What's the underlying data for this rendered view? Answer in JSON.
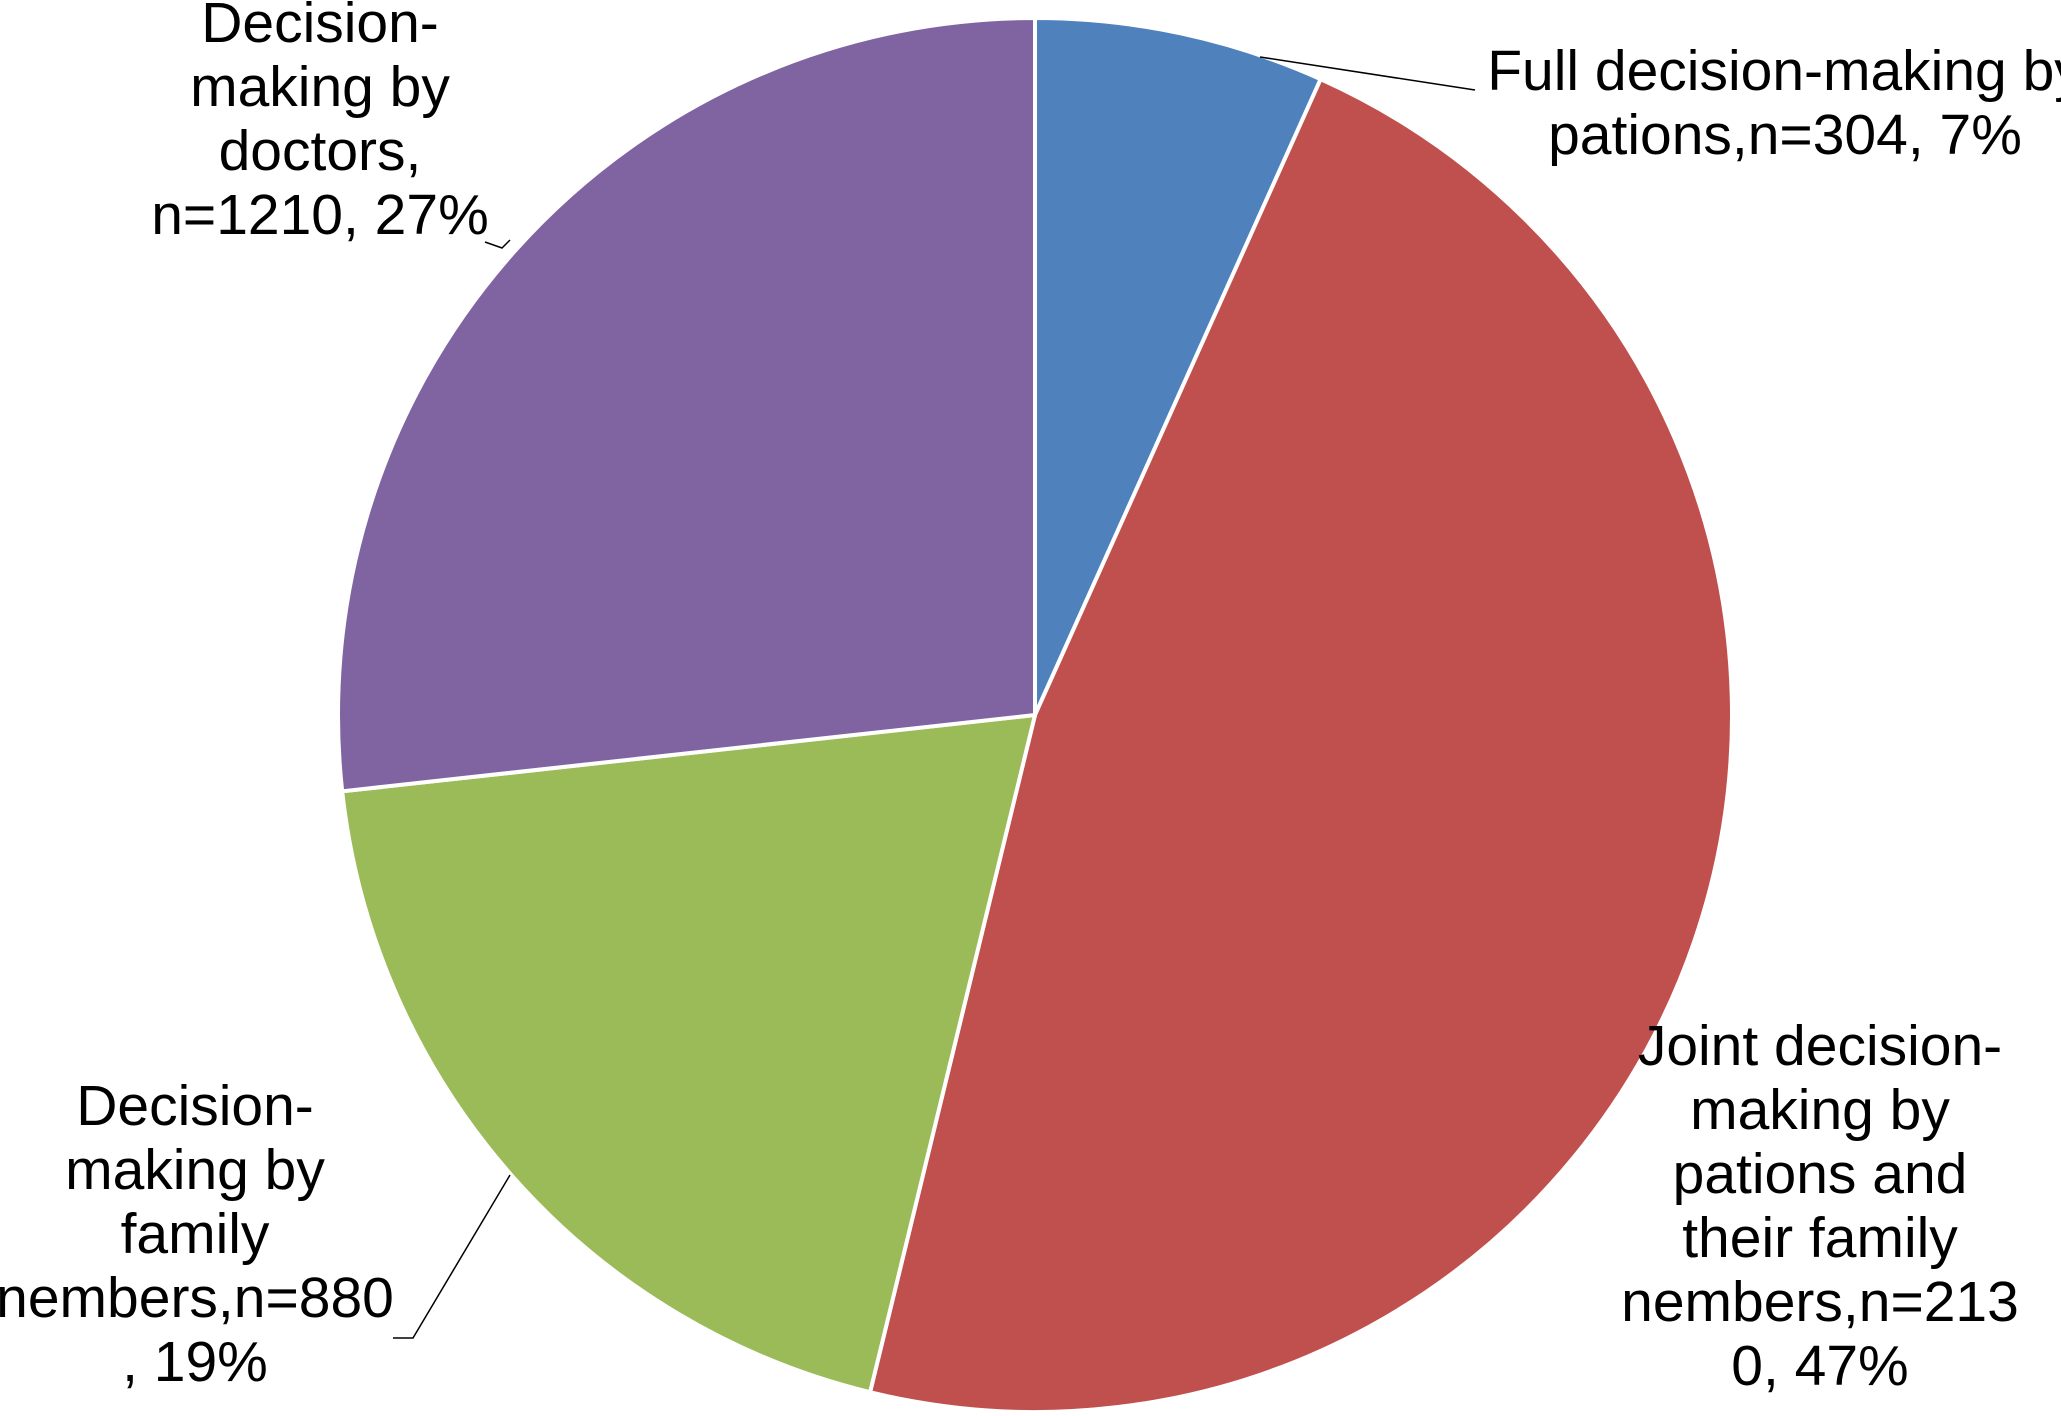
{
  "chart_data": {
    "type": "pie",
    "start_angle": "12 o'clock",
    "direction": "clockwise",
    "slices": [
      {
        "label_lines": [
          "Full decision-making by",
          "pations,n=304, 7%"
        ],
        "name": "Full decision-making by pations",
        "n": 304,
        "percent": 7,
        "color": "#4F81BD"
      },
      {
        "label_lines": [
          "Joint decision-",
          "making by",
          "pations and",
          "their family",
          "nembers,n=213",
          "0, 47%"
        ],
        "name": "Joint decision-making by pations and their family nembers",
        "n": 2130,
        "percent": 47,
        "color": "#C0504D"
      },
      {
        "label_lines": [
          "Decision-",
          "making by",
          "family",
          "nembers,n=880",
          ", 19%"
        ],
        "name": "Decision-making by family nembers",
        "n": 880,
        "percent": 19,
        "color": "#9BBB59"
      },
      {
        "label_lines": [
          "Decision-",
          "making by",
          "doctors,",
          "n=1210, 27%"
        ],
        "name": "Decision-making by doctors",
        "n": 1210,
        "percent": 27,
        "color": "#8064A2"
      }
    ]
  }
}
